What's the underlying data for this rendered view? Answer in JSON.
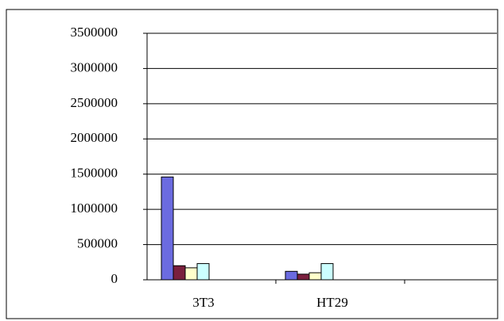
{
  "chart_data": {
    "type": "bar",
    "categories": [
      "3T3",
      "HT29",
      null
    ],
    "series": [
      {
        "color": "#6b6be0",
        "values": [
          1460000,
          120000,
          null
        ]
      },
      {
        "color": "#7a1f3d",
        "values": [
          200000,
          80000,
          null
        ]
      },
      {
        "color": "#ffffcc",
        "values": [
          170000,
          100000,
          null
        ]
      },
      {
        "color": "#ccffff",
        "values": [
          230000,
          230000,
          null
        ]
      }
    ],
    "ylim": [
      0,
      3500000
    ],
    "yticks": [
      0,
      500000,
      1000000,
      1500000,
      2000000,
      2500000,
      3000000,
      3500000
    ],
    "grid": true
  }
}
